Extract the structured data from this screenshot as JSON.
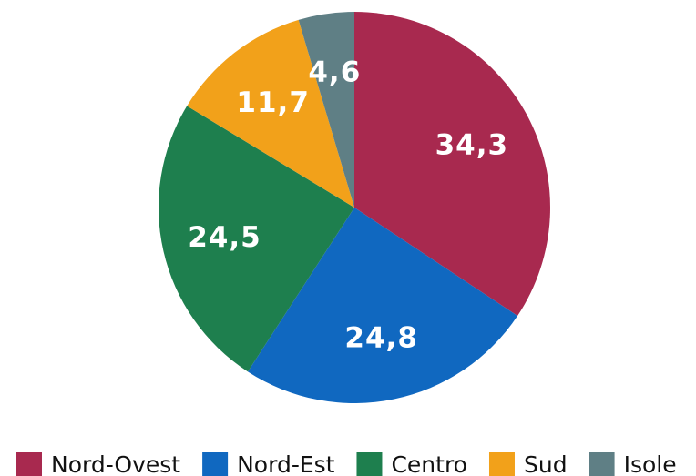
{
  "chart_data": {
    "type": "pie",
    "categories": [
      "Nord-Ovest",
      "Nord-Est",
      "Centro",
      "Sud",
      "Isole"
    ],
    "values": [
      34.3,
      24.8,
      24.5,
      11.7,
      4.6
    ],
    "value_labels": [
      "34,3",
      "24,8",
      "24,5",
      "11,7",
      "4,6"
    ],
    "colors": [
      "#a8294f",
      "#1068c0",
      "#1e7f4e",
      "#f2a11a",
      "#5f7f85"
    ],
    "legend": "bottom"
  }
}
